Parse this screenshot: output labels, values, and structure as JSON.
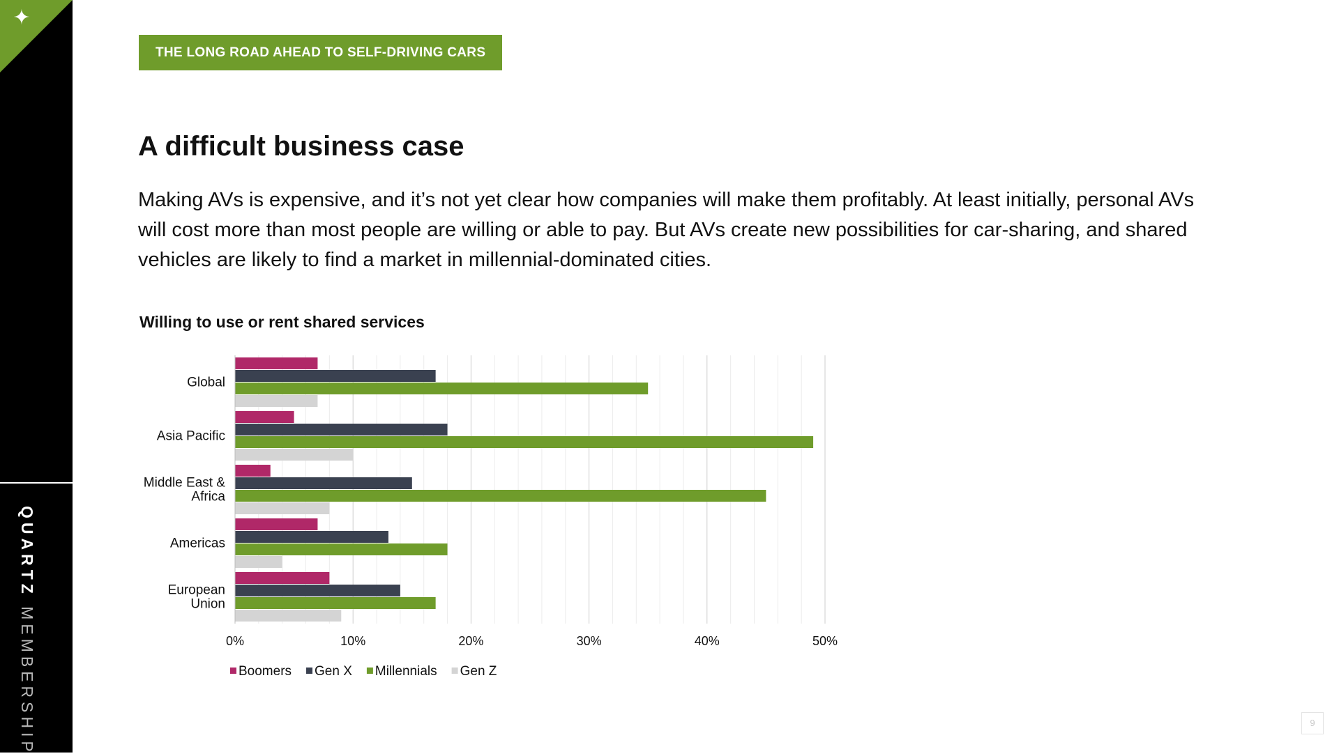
{
  "header": {
    "tag_label": "THE LONG ROAD AHEAD TO SELF-DRIVING CARS",
    "title": "A difficult business case",
    "body": "Making AVs is expensive, and it’s not yet clear how companies will make them profitably. At least initially, personal AVs will cost more than most people are willing or able to pay. But AVs create new possibilities for car-sharing, and shared vehicles are likely to find a market in millennial-dominated cities."
  },
  "sidebar": {
    "brand_strong": "QUARTZ",
    "brand_light": "MEMBERSHIP",
    "logo_icon": "star-icon"
  },
  "page": {
    "number": "9"
  },
  "colors": {
    "accent": "#6f9c2b",
    "boomers": "#b02868",
    "genx": "#3a4150",
    "millennials": "#6f9c2b",
    "genz": "#d4d4d4"
  },
  "chart_data": {
    "type": "bar",
    "orientation": "horizontal",
    "title": "Willing to use or rent shared services",
    "categories": [
      "Global",
      "Asia Pacific",
      "Middle East & Africa",
      "Americas",
      "European Union"
    ],
    "category_lines": [
      [
        "Global"
      ],
      [
        "Asia Pacific"
      ],
      [
        "Middle East &",
        "Africa"
      ],
      [
        "Americas"
      ],
      [
        "European",
        "Union"
      ]
    ],
    "series": [
      {
        "name": "Boomers",
        "values": [
          7,
          5,
          3,
          7,
          8
        ]
      },
      {
        "name": "Gen X",
        "values": [
          17,
          18,
          15,
          13,
          14
        ]
      },
      {
        "name": "Millennials",
        "values": [
          35,
          49,
          45,
          18,
          17
        ]
      },
      {
        "name": "Gen Z",
        "values": [
          7,
          10,
          8,
          4,
          9
        ]
      }
    ],
    "xlim": [
      0,
      50
    ],
    "x_ticks": [
      "0%",
      "10%",
      "20%",
      "30%",
      "40%",
      "50%"
    ],
    "grid": "vertical",
    "legend_position": "bottom-left"
  }
}
